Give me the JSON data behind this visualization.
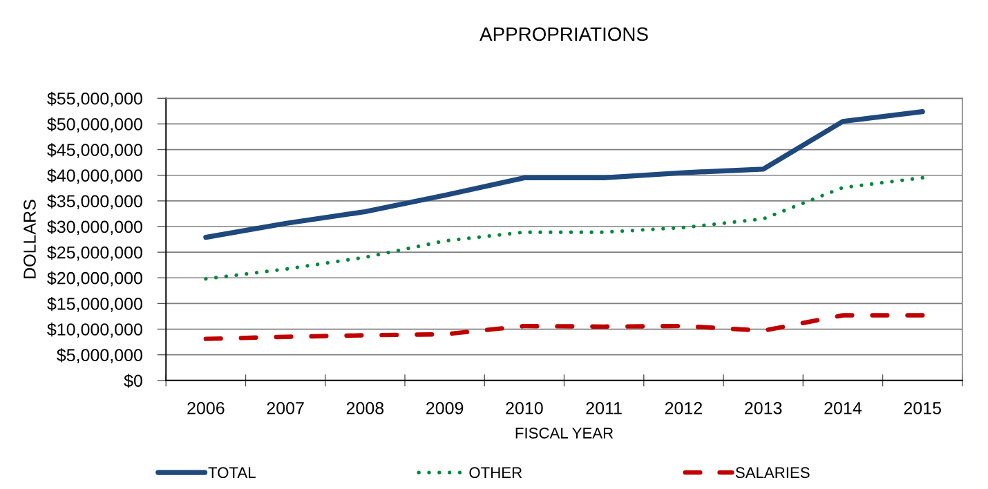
{
  "chart_data": {
    "type": "line",
    "title": "APPROPRIATIONS",
    "xlabel": "FISCAL YEAR",
    "ylabel": "DOLLARS",
    "categories": [
      "2006",
      "2007",
      "2008",
      "2009",
      "2010",
      "2011",
      "2012",
      "2013",
      "2014",
      "2015"
    ],
    "series": [
      {
        "name": "TOTAL",
        "color": "#1f497d",
        "line_style": "solid",
        "values": [
          27900000,
          30600000,
          32900000,
          36100000,
          39500000,
          39500000,
          40500000,
          41200000,
          50500000,
          52400000
        ]
      },
      {
        "name": "OTHER",
        "color": "#00873c",
        "line_style": "dotted",
        "values": [
          19800000,
          21700000,
          24000000,
          27200000,
          28900000,
          28900000,
          29800000,
          31500000,
          37600000,
          39500000
        ]
      },
      {
        "name": "SALARIES",
        "color": "#c00000",
        "line_style": "dashed",
        "values": [
          8100000,
          8500000,
          8800000,
          9000000,
          10600000,
          10500000,
          10600000,
          9700000,
          12700000,
          12700000
        ]
      }
    ],
    "ylim": [
      0,
      55000000
    ],
    "yticks": [
      {
        "value": 0,
        "label": "$0"
      },
      {
        "value": 5000000,
        "label": "$5,000,000"
      },
      {
        "value": 10000000,
        "label": "$10,000,000"
      },
      {
        "value": 15000000,
        "label": "$15,000,000"
      },
      {
        "value": 20000000,
        "label": "$20,000,000"
      },
      {
        "value": 25000000,
        "label": "$25,000,000"
      },
      {
        "value": 30000000,
        "label": "$30,000,000"
      },
      {
        "value": 35000000,
        "label": "$35,000,000"
      },
      {
        "value": 40000000,
        "label": "$40,000,000"
      },
      {
        "value": 45000000,
        "label": "$45,000,000"
      },
      {
        "value": 50000000,
        "label": "$50,000,000"
      },
      {
        "value": 55000000,
        "label": "$55,000,000"
      }
    ],
    "grid": "y",
    "legend": "bottom"
  }
}
